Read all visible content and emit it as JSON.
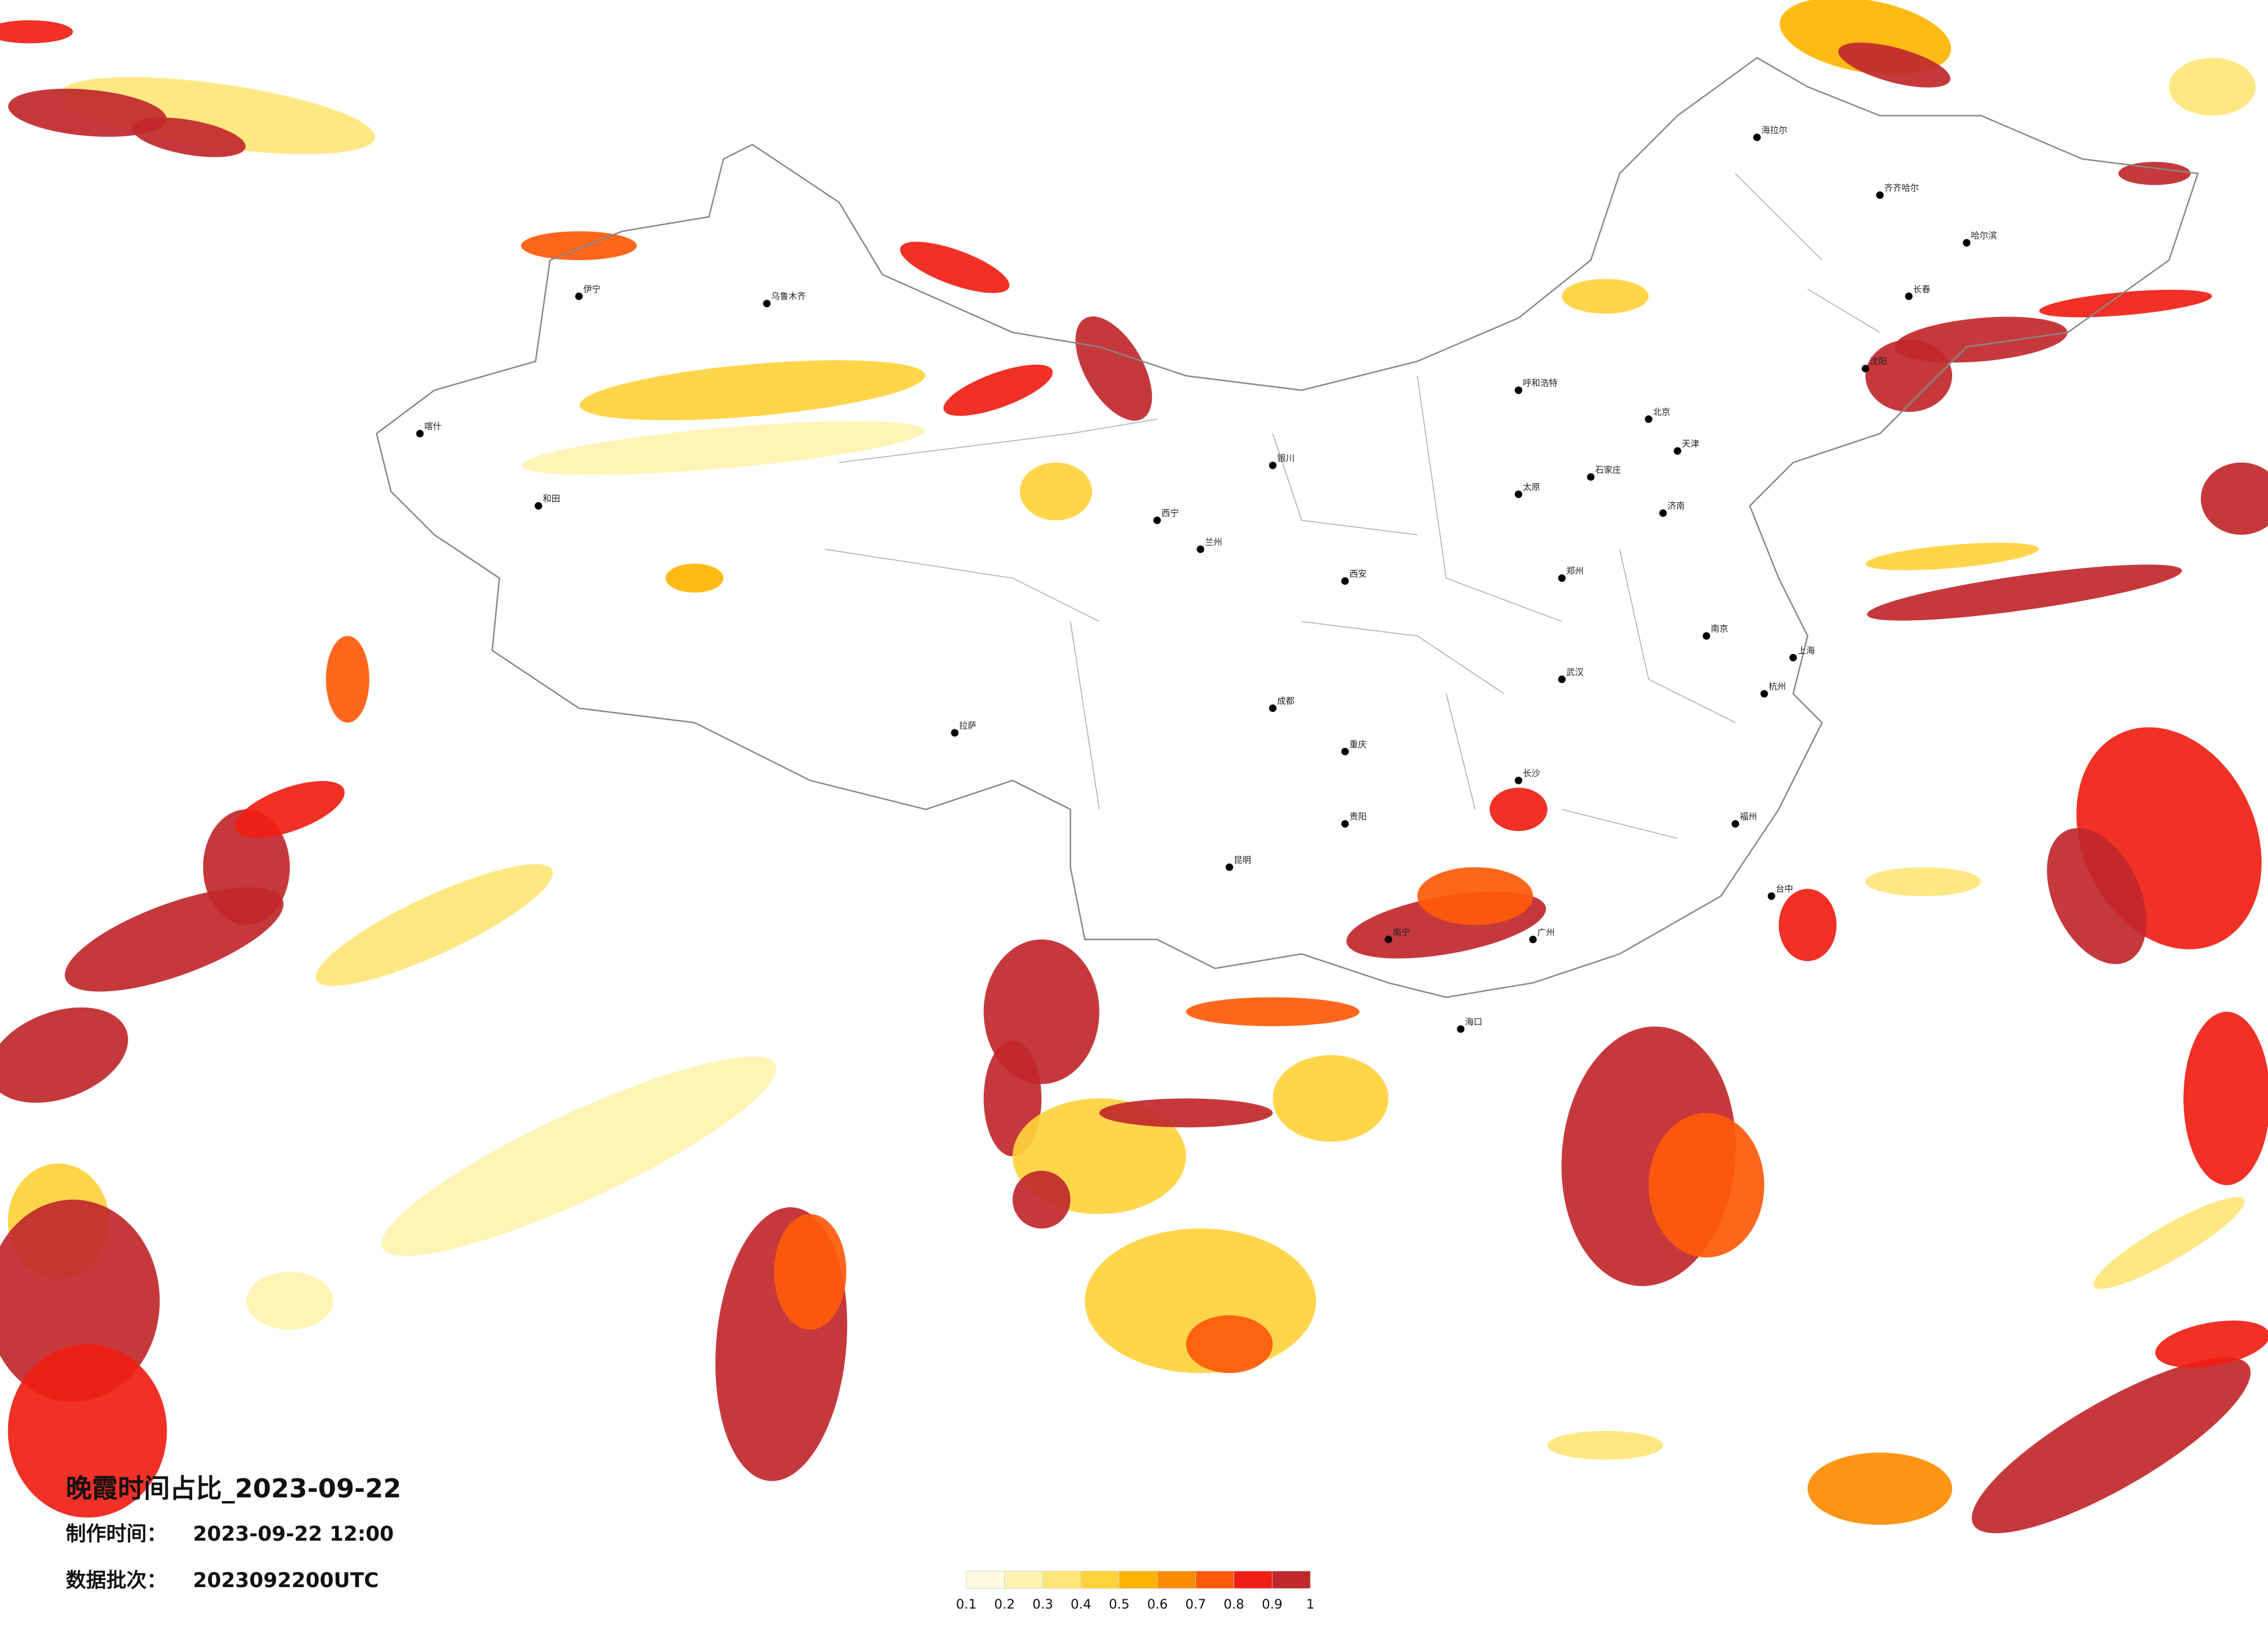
{
  "title": "晚霞时间占比_2023-09-22",
  "made_label": "制作时间：",
  "made_time": "2023-09-22 12:00",
  "batch_label": "数据批次：",
  "batch": "2023092200UTC",
  "colorbar": {
    "ticks": [
      0.1,
      0.2,
      0.3,
      0.4,
      0.5,
      0.6,
      0.7,
      0.8,
      0.9,
      1
    ],
    "colors": [
      "#fffbe0",
      "#fff3b0",
      "#ffe67a",
      "#ffd23c",
      "#ffb400",
      "#ff8c00",
      "#ff5a0a",
      "#f01e14",
      "#c0282d"
    ]
  },
  "cities": [
    "海拉尔",
    "齐齐哈尔",
    "哈尔滨",
    "长春",
    "沈阳",
    "呼和浩特",
    "北京",
    "天津",
    "石家庄",
    "太原",
    "济南",
    "郑州",
    "西安",
    "兰州",
    "西宁",
    "银川",
    "乌鲁木齐",
    "伊宁",
    "喀什",
    "和田",
    "拉萨",
    "成都",
    "重庆",
    "昆明",
    "贵阳",
    "南宁",
    "广州",
    "长沙",
    "武汉",
    "南京",
    "上海",
    "杭州",
    "福州",
    "海口",
    "台中"
  ]
}
